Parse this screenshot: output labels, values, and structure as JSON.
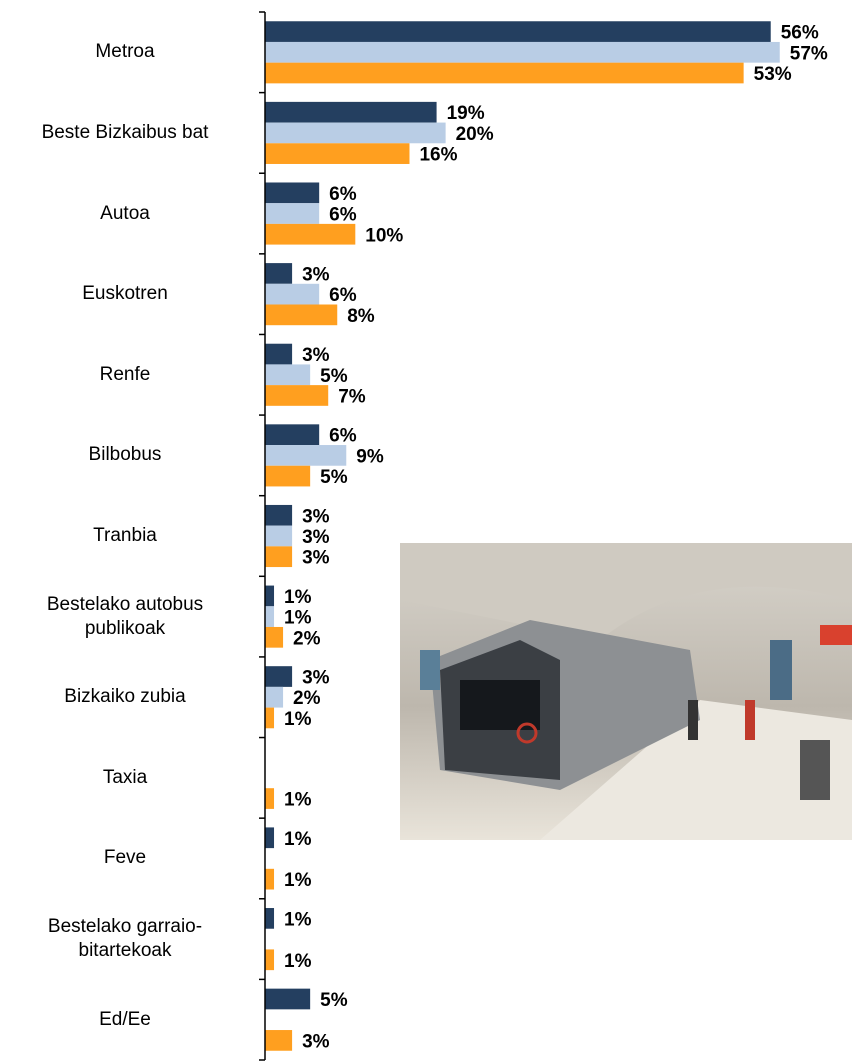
{
  "chart_data": {
    "type": "bar",
    "orientation": "horizontal",
    "categories": [
      "Metroa",
      "Beste Bizkaibus bat",
      "Autoa",
      "Euskotren",
      "Renfe",
      "Bilbobus",
      "Tranbia",
      "Bestelako autobus\npublikoak",
      "Bizkaiko zubia",
      "Taxia",
      "Feve",
      "Bestelako garraio-\nbitartekoak",
      "Ed/Ee"
    ],
    "series": [
      {
        "color": "#243f60",
        "values": [
          56,
          19,
          6,
          3,
          3,
          6,
          3,
          1,
          3,
          null,
          1,
          1,
          5
        ],
        "value_labels": [
          "56%",
          "19%",
          "6%",
          "3%",
          "3%",
          "6%",
          "3%",
          "1%",
          "3%",
          null,
          "1%",
          "1%",
          "5%"
        ]
      },
      {
        "color": "#b9cde5",
        "values": [
          57,
          20,
          6,
          6,
          5,
          9,
          3,
          1,
          2,
          null,
          null,
          null,
          null
        ],
        "value_labels": [
          "57%",
          "20%",
          "6%",
          "6%",
          "5%",
          "9%",
          "3%",
          "1%",
          "2%",
          null,
          null,
          null,
          null
        ]
      },
      {
        "color": "#ff9f1f",
        "values": [
          53,
          16,
          10,
          8,
          7,
          5,
          3,
          2,
          1,
          1,
          1,
          1,
          3
        ],
        "value_labels": [
          "53%",
          "16%",
          "10%",
          "8%",
          "7%",
          "5%",
          "3%",
          "2%",
          "1%",
          "1%",
          "1%",
          "1%",
          "3%"
        ]
      }
    ],
    "xlim": [
      0,
      65
    ]
  }
}
